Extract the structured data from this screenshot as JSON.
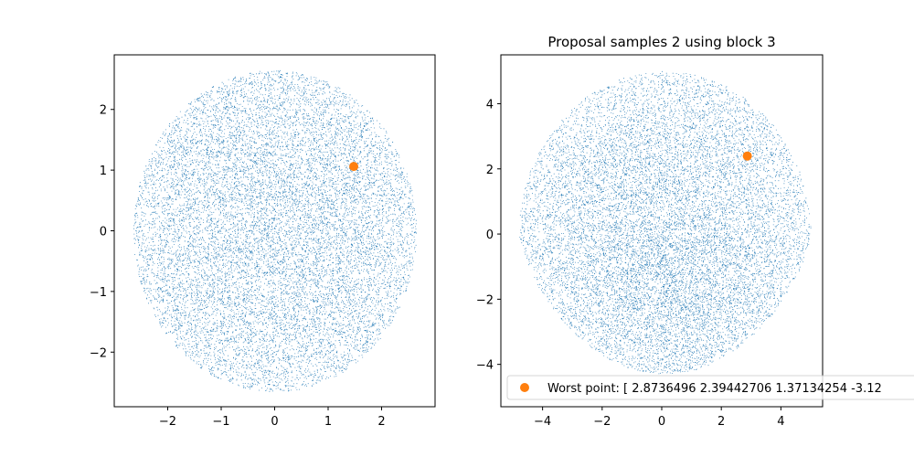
{
  "chart_data": [
    {
      "type": "scatter",
      "title": "",
      "xlabel": "",
      "ylabel": "",
      "xlim": [
        -3.0,
        3.0
      ],
      "ylim": [
        -2.9,
        2.9
      ],
      "xticks": [
        -2,
        -1,
        0,
        1,
        2
      ],
      "yticks": [
        -2,
        -1,
        0,
        1,
        2
      ],
      "xtick_labels": [
        "−2",
        "−1",
        "0",
        "1",
        "2"
      ],
      "ytick_labels": [
        "−2",
        "−1",
        "0",
        "1",
        "2"
      ],
      "grid": false,
      "series": [
        {
          "color": "#1f77b4",
          "marker": "pixel",
          "distribution": {
            "kind": "uniform-disk",
            "center": [
              0,
              0
            ],
            "radius": 2.65,
            "count": 14000
          }
        },
        {
          "color": "#ff7f0e",
          "marker": "circle",
          "x": [
            1.48
          ],
          "y": [
            1.06
          ]
        }
      ]
    },
    {
      "type": "scatter",
      "title": "Proposal samples 2 using block 3",
      "xlabel": "",
      "ylabel": "",
      "xlim": [
        -5.4,
        5.4
      ],
      "ylim": [
        -5.3,
        5.5
      ],
      "xticks": [
        -4,
        -2,
        0,
        2,
        4
      ],
      "yticks": [
        -4,
        -2,
        0,
        2,
        4
      ],
      "xtick_labels": [
        "−4",
        "−2",
        "0",
        "2",
        "4"
      ],
      "ytick_labels": [
        "−4",
        "−2",
        "0",
        "2",
        "4"
      ],
      "grid": false,
      "legend_position": "lower-left",
      "series": [
        {
          "color": "#1f77b4",
          "marker": "pixel",
          "distribution": {
            "kind": "blob",
            "center": [
              0.1,
              0.0
            ],
            "radius_x": 4.9,
            "radius_y_top": 5.0,
            "radius_y_bottom": 4.3,
            "count": 14000
          }
        },
        {
          "name": "Worst point: [ 2.8736496   2.39442706  1.37134254 -3.12",
          "color": "#ff7f0e",
          "marker": "circle",
          "x": [
            2.8736496
          ],
          "y": [
            2.39442706
          ]
        }
      ]
    }
  ]
}
